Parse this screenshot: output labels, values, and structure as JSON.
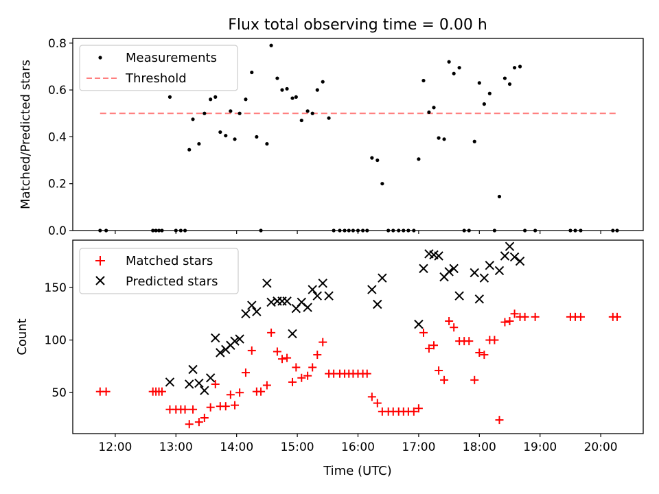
{
  "figure": {
    "title": "Flux total observing time = 0.00 h",
    "xlabel": "Time (UTC)"
  },
  "chart_data": [
    {
      "type": "scatter",
      "title": "Flux total observing time = 0.00 h",
      "xlabel": "",
      "ylabel": "Matched/Predicted stars",
      "xlim": [
        11.3,
        20.7
      ],
      "ylim": [
        0,
        0.82
      ],
      "yticks": [
        0.0,
        0.2,
        0.4,
        0.6,
        0.8
      ],
      "ytick_labels": [
        "0.0",
        "0.2",
        "0.4",
        "0.6",
        "0.8"
      ],
      "grid": false,
      "legend_position": "top-left",
      "series": [
        {
          "name": "Measurements",
          "marker": "dot",
          "color": "#000000",
          "points": [
            [
              11.75,
              0.0
            ],
            [
              11.85,
              0.0
            ],
            [
              12.62,
              0.0
            ],
            [
              12.67,
              0.0
            ],
            [
              12.72,
              0.0
            ],
            [
              12.77,
              0.0
            ],
            [
              12.9,
              0.57
            ],
            [
              13.0,
              0.0
            ],
            [
              13.08,
              0.0
            ],
            [
              13.15,
              0.0
            ],
            [
              13.22,
              0.345
            ],
            [
              13.28,
              0.475
            ],
            [
              13.38,
              0.37
            ],
            [
              13.47,
              0.5
            ],
            [
              13.57,
              0.56
            ],
            [
              13.65,
              0.57
            ],
            [
              13.73,
              0.42
            ],
            [
              13.82,
              0.405
            ],
            [
              13.9,
              0.51
            ],
            [
              13.97,
              0.39
            ],
            [
              14.05,
              0.5
            ],
            [
              14.15,
              0.56
            ],
            [
              14.25,
              0.675
            ],
            [
              14.33,
              0.4
            ],
            [
              14.4,
              0.0
            ],
            [
              14.5,
              0.37
            ],
            [
              14.57,
              0.79
            ],
            [
              14.67,
              0.65
            ],
            [
              14.75,
              0.6
            ],
            [
              14.83,
              0.605
            ],
            [
              14.92,
              0.565
            ],
            [
              14.98,
              0.57
            ],
            [
              15.07,
              0.47
            ],
            [
              15.17,
              0.51
            ],
            [
              15.25,
              0.5
            ],
            [
              15.33,
              0.6
            ],
            [
              15.42,
              0.635
            ],
            [
              15.52,
              0.48
            ],
            [
              15.6,
              0.0
            ],
            [
              15.7,
              0.0
            ],
            [
              15.78,
              0.0
            ],
            [
              15.85,
              0.0
            ],
            [
              15.92,
              0.0
            ],
            [
              16.0,
              0.0
            ],
            [
              16.08,
              0.0
            ],
            [
              16.15,
              0.0
            ],
            [
              16.23,
              0.31
            ],
            [
              16.32,
              0.3
            ],
            [
              16.4,
              0.2
            ],
            [
              16.5,
              0.0
            ],
            [
              16.58,
              0.0
            ],
            [
              16.67,
              0.0
            ],
            [
              16.75,
              0.0
            ],
            [
              16.83,
              0.0
            ],
            [
              16.92,
              0.0
            ],
            [
              17.0,
              0.305
            ],
            [
              17.08,
              0.64
            ],
            [
              17.17,
              0.505
            ],
            [
              17.25,
              0.525
            ],
            [
              17.33,
              0.395
            ],
            [
              17.42,
              0.39
            ],
            [
              17.5,
              0.72
            ],
            [
              17.58,
              0.67
            ],
            [
              17.67,
              0.695
            ],
            [
              17.75,
              0.0
            ],
            [
              17.83,
              0.0
            ],
            [
              17.92,
              0.38
            ],
            [
              18.0,
              0.63
            ],
            [
              18.08,
              0.54
            ],
            [
              18.17,
              0.585
            ],
            [
              18.25,
              0.0
            ],
            [
              18.33,
              0.145
            ],
            [
              18.42,
              0.65
            ],
            [
              18.5,
              0.625
            ],
            [
              18.58,
              0.695
            ],
            [
              18.67,
              0.7
            ],
            [
              18.75,
              0.0
            ],
            [
              18.92,
              0.0
            ],
            [
              19.5,
              0.0
            ],
            [
              19.58,
              0.0
            ],
            [
              19.67,
              0.0
            ],
            [
              20.2,
              0.0
            ],
            [
              20.27,
              0.0
            ]
          ]
        },
        {
          "name": "Threshold",
          "line_style": "dashed",
          "color": "#ff7f7f",
          "x": [
            11.75,
            20.27
          ],
          "y": [
            0.5,
            0.5
          ]
        }
      ]
    },
    {
      "type": "scatter",
      "xlabel": "Time (UTC)",
      "ylabel": "Count",
      "xlim": [
        11.3,
        20.7
      ],
      "ylim": [
        11,
        195
      ],
      "yticks": [
        50,
        100,
        150
      ],
      "ytick_labels": [
        "50",
        "100",
        "150"
      ],
      "xticks": [
        12,
        13,
        14,
        15,
        16,
        17,
        18,
        19,
        20
      ],
      "xtick_labels": [
        "12:00",
        "13:00",
        "14:00",
        "15:00",
        "16:00",
        "17:00",
        "18:00",
        "19:00",
        "20:00"
      ],
      "grid": false,
      "legend_position": "top-left",
      "series": [
        {
          "name": "Matched stars",
          "marker": "plus",
          "color": "#ff0000",
          "points": [
            [
              11.75,
              51
            ],
            [
              11.85,
              51
            ],
            [
              12.62,
              51
            ],
            [
              12.67,
              51
            ],
            [
              12.72,
              51
            ],
            [
              12.77,
              51
            ],
            [
              12.9,
              34
            ],
            [
              13.0,
              34
            ],
            [
              13.08,
              34
            ],
            [
              13.15,
              34
            ],
            [
              13.22,
              20
            ],
            [
              13.28,
              34
            ],
            [
              13.38,
              22
            ],
            [
              13.47,
              26
            ],
            [
              13.57,
              36
            ],
            [
              13.65,
              58
            ],
            [
              13.73,
              37
            ],
            [
              13.82,
              37
            ],
            [
              13.9,
              48
            ],
            [
              13.97,
              38
            ],
            [
              14.05,
              50
            ],
            [
              14.15,
              69
            ],
            [
              14.25,
              90
            ],
            [
              14.33,
              51
            ],
            [
              14.4,
              51
            ],
            [
              14.5,
              57
            ],
            [
              14.57,
              107
            ],
            [
              14.67,
              89
            ],
            [
              14.75,
              82
            ],
            [
              14.83,
              83
            ],
            [
              14.92,
              60
            ],
            [
              14.98,
              74
            ],
            [
              15.07,
              64
            ],
            [
              15.17,
              66
            ],
            [
              15.25,
              74
            ],
            [
              15.33,
              86
            ],
            [
              15.42,
              98
            ],
            [
              15.52,
              68
            ],
            [
              15.6,
              68
            ],
            [
              15.7,
              68
            ],
            [
              15.78,
              68
            ],
            [
              15.85,
              68
            ],
            [
              15.92,
              68
            ],
            [
              16.0,
              68
            ],
            [
              16.08,
              68
            ],
            [
              16.15,
              68
            ],
            [
              16.23,
              46
            ],
            [
              16.32,
              40
            ],
            [
              16.4,
              32
            ],
            [
              16.5,
              32
            ],
            [
              16.58,
              32
            ],
            [
              16.67,
              32
            ],
            [
              16.75,
              32
            ],
            [
              16.83,
              32
            ],
            [
              16.92,
              32
            ],
            [
              17.0,
              35
            ],
            [
              17.08,
              107
            ],
            [
              17.17,
              92
            ],
            [
              17.25,
              95
            ],
            [
              17.33,
              71
            ],
            [
              17.42,
              62
            ],
            [
              17.5,
              118
            ],
            [
              17.58,
              112
            ],
            [
              17.67,
              99
            ],
            [
              17.75,
              99
            ],
            [
              17.83,
              99
            ],
            [
              17.92,
              62
            ],
            [
              18.0,
              88
            ],
            [
              18.08,
              86
            ],
            [
              18.17,
              100
            ],
            [
              18.25,
              100
            ],
            [
              18.33,
              24
            ],
            [
              18.42,
              117
            ],
            [
              18.5,
              118
            ],
            [
              18.58,
              125
            ],
            [
              18.67,
              122
            ],
            [
              18.75,
              122
            ],
            [
              18.92,
              122
            ],
            [
              19.5,
              122
            ],
            [
              19.58,
              122
            ],
            [
              19.67,
              122
            ],
            [
              20.2,
              122
            ],
            [
              20.27,
              122
            ]
          ]
        },
        {
          "name": "Predicted stars",
          "marker": "x",
          "color": "#000000",
          "points": [
            [
              12.9,
              60
            ],
            [
              13.22,
              58
            ],
            [
              13.28,
              72
            ],
            [
              13.38,
              59
            ],
            [
              13.47,
              52
            ],
            [
              13.57,
              64
            ],
            [
              13.65,
              102
            ],
            [
              13.73,
              88
            ],
            [
              13.82,
              91
            ],
            [
              13.9,
              95
            ],
            [
              13.97,
              99
            ],
            [
              14.05,
              101
            ],
            [
              14.15,
              125
            ],
            [
              14.25,
              133
            ],
            [
              14.33,
              127
            ],
            [
              14.5,
              154
            ],
            [
              14.57,
              136
            ],
            [
              14.67,
              137
            ],
            [
              14.75,
              137
            ],
            [
              14.83,
              137
            ],
            [
              14.92,
              106
            ],
            [
              14.98,
              130
            ],
            [
              15.07,
              136
            ],
            [
              15.17,
              131
            ],
            [
              15.25,
              148
            ],
            [
              15.33,
              142
            ],
            [
              15.42,
              154
            ],
            [
              15.52,
              142
            ],
            [
              16.23,
              148
            ],
            [
              16.32,
              134
            ],
            [
              16.4,
              159
            ],
            [
              17.0,
              115
            ],
            [
              17.08,
              168
            ],
            [
              17.17,
              182
            ],
            [
              17.25,
              181
            ],
            [
              17.33,
              180
            ],
            [
              17.42,
              160
            ],
            [
              17.5,
              165
            ],
            [
              17.58,
              168
            ],
            [
              17.67,
              142
            ],
            [
              17.92,
              164
            ],
            [
              18.0,
              139
            ],
            [
              18.08,
              159
            ],
            [
              18.17,
              171
            ],
            [
              18.33,
              166
            ],
            [
              18.42,
              180
            ],
            [
              18.5,
              189
            ],
            [
              18.58,
              179
            ],
            [
              18.67,
              175
            ]
          ]
        }
      ]
    }
  ]
}
